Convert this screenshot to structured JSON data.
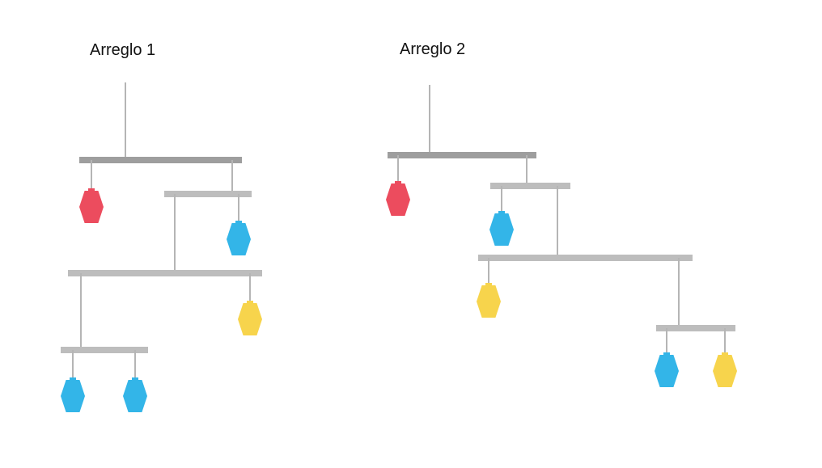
{
  "arrangements": [
    {
      "title": "Arreglo 1",
      "top_bar": {
        "left": [
          "red"
        ],
        "right": "sub_bar_a"
      },
      "sub_bar_a": {
        "left": "main_bar",
        "right": [
          "blue"
        ]
      },
      "main_bar": {
        "left": "bottom_bar",
        "right": [
          "yellow"
        ]
      },
      "bottom_bar": {
        "left": [
          "blue"
        ],
        "right": [
          "blue"
        ]
      }
    },
    {
      "title": "Arreglo 2",
      "top_bar": {
        "left": [
          "red"
        ],
        "right": "sub_bar_a"
      },
      "sub_bar_a": {
        "left": [
          "blue"
        ],
        "right": "main_bar"
      },
      "main_bar": {
        "left": [
          "yellow"
        ],
        "right": "bottom_bar"
      },
      "bottom_bar": {
        "left": [
          "blue"
        ],
        "right": [
          "yellow"
        ]
      }
    }
  ],
  "colors": {
    "red": "#EC4C5E",
    "blue": "#33B5E8",
    "yellow": "#F7D44C",
    "bar_dark": "#9E9E9E",
    "bar_light": "#BDBDBD",
    "string": "#B5B5B5"
  }
}
